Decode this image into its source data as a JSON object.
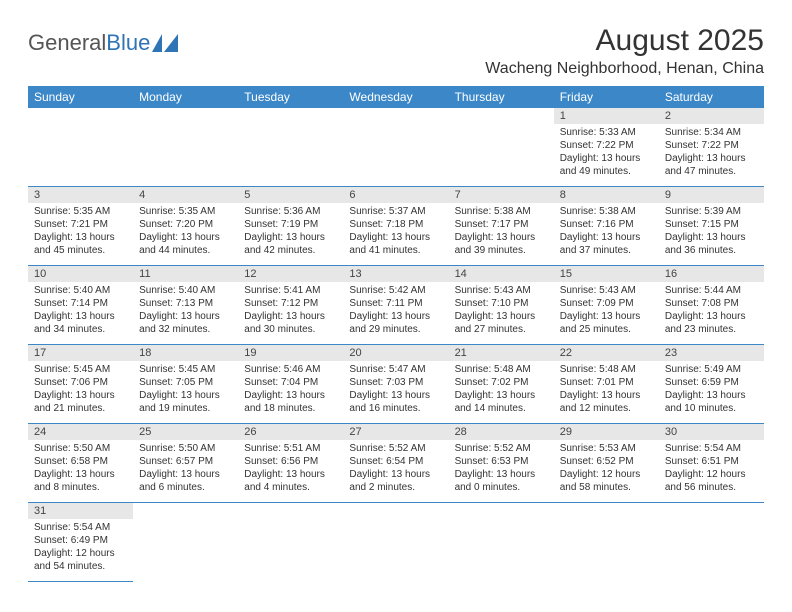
{
  "brand": {
    "part1": "General",
    "part2": "Blue"
  },
  "title": "August 2025",
  "location": "Wacheng Neighborhood, Henan, China",
  "header_bg": "#3b87c8",
  "daynum_bg": "#e7e7e7",
  "weekdays": [
    "Sunday",
    "Monday",
    "Tuesday",
    "Wednesday",
    "Thursday",
    "Friday",
    "Saturday"
  ],
  "weeks": [
    [
      null,
      null,
      null,
      null,
      null,
      {
        "n": "1",
        "sr": "Sunrise: 5:33 AM",
        "ss": "Sunset: 7:22 PM",
        "dl": "Daylight: 13 hours and 49 minutes."
      },
      {
        "n": "2",
        "sr": "Sunrise: 5:34 AM",
        "ss": "Sunset: 7:22 PM",
        "dl": "Daylight: 13 hours and 47 minutes."
      }
    ],
    [
      {
        "n": "3",
        "sr": "Sunrise: 5:35 AM",
        "ss": "Sunset: 7:21 PM",
        "dl": "Daylight: 13 hours and 45 minutes."
      },
      {
        "n": "4",
        "sr": "Sunrise: 5:35 AM",
        "ss": "Sunset: 7:20 PM",
        "dl": "Daylight: 13 hours and 44 minutes."
      },
      {
        "n": "5",
        "sr": "Sunrise: 5:36 AM",
        "ss": "Sunset: 7:19 PM",
        "dl": "Daylight: 13 hours and 42 minutes."
      },
      {
        "n": "6",
        "sr": "Sunrise: 5:37 AM",
        "ss": "Sunset: 7:18 PM",
        "dl": "Daylight: 13 hours and 41 minutes."
      },
      {
        "n": "7",
        "sr": "Sunrise: 5:38 AM",
        "ss": "Sunset: 7:17 PM",
        "dl": "Daylight: 13 hours and 39 minutes."
      },
      {
        "n": "8",
        "sr": "Sunrise: 5:38 AM",
        "ss": "Sunset: 7:16 PM",
        "dl": "Daylight: 13 hours and 37 minutes."
      },
      {
        "n": "9",
        "sr": "Sunrise: 5:39 AM",
        "ss": "Sunset: 7:15 PM",
        "dl": "Daylight: 13 hours and 36 minutes."
      }
    ],
    [
      {
        "n": "10",
        "sr": "Sunrise: 5:40 AM",
        "ss": "Sunset: 7:14 PM",
        "dl": "Daylight: 13 hours and 34 minutes."
      },
      {
        "n": "11",
        "sr": "Sunrise: 5:40 AM",
        "ss": "Sunset: 7:13 PM",
        "dl": "Daylight: 13 hours and 32 minutes."
      },
      {
        "n": "12",
        "sr": "Sunrise: 5:41 AM",
        "ss": "Sunset: 7:12 PM",
        "dl": "Daylight: 13 hours and 30 minutes."
      },
      {
        "n": "13",
        "sr": "Sunrise: 5:42 AM",
        "ss": "Sunset: 7:11 PM",
        "dl": "Daylight: 13 hours and 29 minutes."
      },
      {
        "n": "14",
        "sr": "Sunrise: 5:43 AM",
        "ss": "Sunset: 7:10 PM",
        "dl": "Daylight: 13 hours and 27 minutes."
      },
      {
        "n": "15",
        "sr": "Sunrise: 5:43 AM",
        "ss": "Sunset: 7:09 PM",
        "dl": "Daylight: 13 hours and 25 minutes."
      },
      {
        "n": "16",
        "sr": "Sunrise: 5:44 AM",
        "ss": "Sunset: 7:08 PM",
        "dl": "Daylight: 13 hours and 23 minutes."
      }
    ],
    [
      {
        "n": "17",
        "sr": "Sunrise: 5:45 AM",
        "ss": "Sunset: 7:06 PM",
        "dl": "Daylight: 13 hours and 21 minutes."
      },
      {
        "n": "18",
        "sr": "Sunrise: 5:45 AM",
        "ss": "Sunset: 7:05 PM",
        "dl": "Daylight: 13 hours and 19 minutes."
      },
      {
        "n": "19",
        "sr": "Sunrise: 5:46 AM",
        "ss": "Sunset: 7:04 PM",
        "dl": "Daylight: 13 hours and 18 minutes."
      },
      {
        "n": "20",
        "sr": "Sunrise: 5:47 AM",
        "ss": "Sunset: 7:03 PM",
        "dl": "Daylight: 13 hours and 16 minutes."
      },
      {
        "n": "21",
        "sr": "Sunrise: 5:48 AM",
        "ss": "Sunset: 7:02 PM",
        "dl": "Daylight: 13 hours and 14 minutes."
      },
      {
        "n": "22",
        "sr": "Sunrise: 5:48 AM",
        "ss": "Sunset: 7:01 PM",
        "dl": "Daylight: 13 hours and 12 minutes."
      },
      {
        "n": "23",
        "sr": "Sunrise: 5:49 AM",
        "ss": "Sunset: 6:59 PM",
        "dl": "Daylight: 13 hours and 10 minutes."
      }
    ],
    [
      {
        "n": "24",
        "sr": "Sunrise: 5:50 AM",
        "ss": "Sunset: 6:58 PM",
        "dl": "Daylight: 13 hours and 8 minutes."
      },
      {
        "n": "25",
        "sr": "Sunrise: 5:50 AM",
        "ss": "Sunset: 6:57 PM",
        "dl": "Daylight: 13 hours and 6 minutes."
      },
      {
        "n": "26",
        "sr": "Sunrise: 5:51 AM",
        "ss": "Sunset: 6:56 PM",
        "dl": "Daylight: 13 hours and 4 minutes."
      },
      {
        "n": "27",
        "sr": "Sunrise: 5:52 AM",
        "ss": "Sunset: 6:54 PM",
        "dl": "Daylight: 13 hours and 2 minutes."
      },
      {
        "n": "28",
        "sr": "Sunrise: 5:52 AM",
        "ss": "Sunset: 6:53 PM",
        "dl": "Daylight: 13 hours and 0 minutes."
      },
      {
        "n": "29",
        "sr": "Sunrise: 5:53 AM",
        "ss": "Sunset: 6:52 PM",
        "dl": "Daylight: 12 hours and 58 minutes."
      },
      {
        "n": "30",
        "sr": "Sunrise: 5:54 AM",
        "ss": "Sunset: 6:51 PM",
        "dl": "Daylight: 12 hours and 56 minutes."
      }
    ],
    [
      {
        "n": "31",
        "sr": "Sunrise: 5:54 AM",
        "ss": "Sunset: 6:49 PM",
        "dl": "Daylight: 12 hours and 54 minutes."
      },
      null,
      null,
      null,
      null,
      null,
      null
    ]
  ]
}
